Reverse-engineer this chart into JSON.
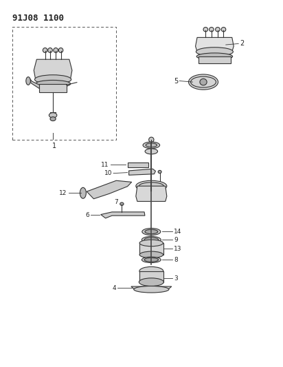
{
  "title": "91J08 1100",
  "bg_color": "#ffffff",
  "line_color": "#333333",
  "fig_width": 4.12,
  "fig_height": 5.33,
  "dpi": 100
}
